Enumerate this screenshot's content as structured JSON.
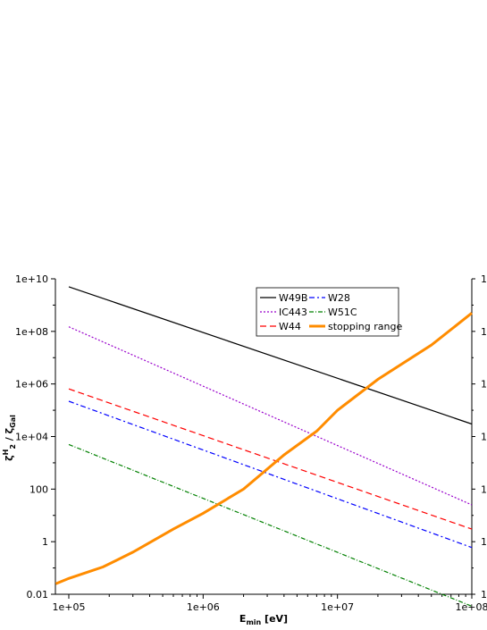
{
  "chart_data": {
    "type": "line",
    "xscale": "log",
    "yscale": "log",
    "xlim": [
      100000,
      100000000
    ],
    "ylim": [
      0.01,
      10000000000
    ],
    "xlabel": "E_min [eV]",
    "ylabel": "ζH2 / ζGal",
    "x_ticks": [
      "1e+05",
      "1e+06",
      "1e+07",
      "1e+08"
    ],
    "y_ticks": [
      "0.01",
      "1",
      "100",
      "1e+04",
      "1e+06",
      "1e+08",
      "1e+10"
    ],
    "right_axis_tick_glyphs": [
      "1",
      "1",
      "1",
      "1",
      "1",
      "1"
    ],
    "legend_position": "top-right",
    "series": [
      {
        "name": "W49B",
        "color": "#000000",
        "dash": "solid",
        "x": [
          100000,
          100000000
        ],
        "y": [
          5000000000,
          30000
        ]
      },
      {
        "name": "IC443",
        "color": "#9900cc",
        "dash": "dotted",
        "x": [
          100000,
          100000000
        ],
        "y": [
          150000000,
          25
        ]
      },
      {
        "name": "W44",
        "color": "#ff0000",
        "dash": "dashed",
        "x": [
          100000,
          100000000
        ],
        "y": [
          650000,
          3
        ]
      },
      {
        "name": "W28",
        "color": "#0000ff",
        "dash": "dashdot",
        "x": [
          100000,
          100000000
        ],
        "y": [
          220000,
          0.6
        ]
      },
      {
        "name": "W51C",
        "color": "#008000",
        "dash": "dashdot2",
        "x": [
          100000,
          100000000
        ],
        "y": [
          5000,
          0.0035
        ]
      },
      {
        "name": "stopping range",
        "color": "#ff8c00",
        "dash": "thick",
        "x": [
          80000,
          100000,
          180000,
          300000,
          600000,
          1000000,
          2000000,
          4000000,
          7000000,
          10000000,
          20000000,
          50000000,
          100000000
        ],
        "y": [
          0.025,
          0.04,
          0.11,
          0.4,
          3,
          12,
          100,
          2000,
          16000,
          100000,
          1500000,
          30000000,
          500000000
        ]
      }
    ]
  }
}
